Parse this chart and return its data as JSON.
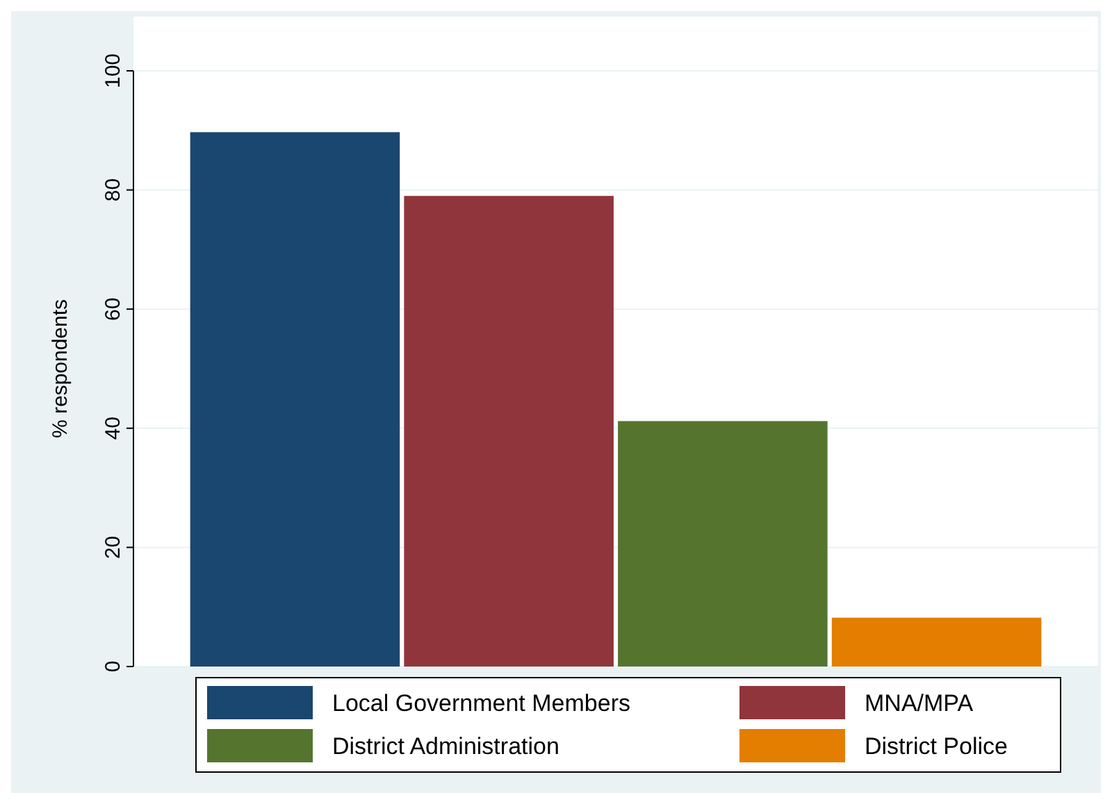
{
  "chart_data": {
    "type": "bar",
    "ylabel": "% respondents",
    "categories": [
      null
    ],
    "series": [
      {
        "name": "Local Government Members",
        "color": "#1a476f",
        "values": [
          89.7
        ]
      },
      {
        "name": "MNA/MPA",
        "color": "#90353b",
        "values": [
          79
        ]
      },
      {
        "name": "District Administration",
        "color": "#55752f",
        "values": [
          41.2
        ]
      },
      {
        "name": "District Police",
        "color": "#e37e00",
        "values": [
          8.2
        ]
      }
    ],
    "ylim": [
      0,
      100
    ],
    "yticks": [
      0,
      20,
      40,
      60,
      80,
      100
    ],
    "grid": "y",
    "legend": "bottom"
  }
}
